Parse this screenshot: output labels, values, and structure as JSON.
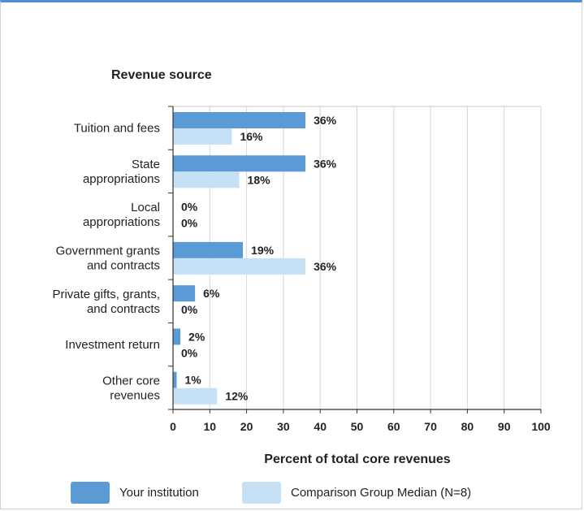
{
  "chart_data": {
    "type": "bar",
    "orientation": "horizontal",
    "title": "Revenue source",
    "xlabel": "Percent of total core revenues",
    "xlim": [
      0,
      100
    ],
    "xticks": [
      0,
      10,
      20,
      30,
      40,
      50,
      60,
      70,
      80,
      90,
      100
    ],
    "grid": true,
    "legend_position": "bottom",
    "categories": [
      [
        "Tuition and fees"
      ],
      [
        "State",
        "appropriations"
      ],
      [
        "Local",
        "appropriations"
      ],
      [
        "Government grants",
        "and contracts"
      ],
      [
        "Private gifts, grants,",
        "and contracts"
      ],
      [
        "Investment return"
      ],
      [
        "Other core",
        "revenues"
      ]
    ],
    "series": [
      {
        "name": "Your institution",
        "color": "#5b9bd5",
        "values": [
          36,
          36,
          0,
          19,
          6,
          2,
          1
        ],
        "labels": [
          "36%",
          "36%",
          "0%",
          "19%",
          "6%",
          "2%",
          "1%"
        ]
      },
      {
        "name": "Comparison Group Median (N=8)",
        "color": "#c6e0f5",
        "values": [
          16,
          18,
          0,
          36,
          0,
          0,
          12
        ],
        "labels": [
          "16%",
          "18%",
          "0%",
          "36%",
          "0%",
          "0%",
          "12%"
        ]
      }
    ]
  }
}
